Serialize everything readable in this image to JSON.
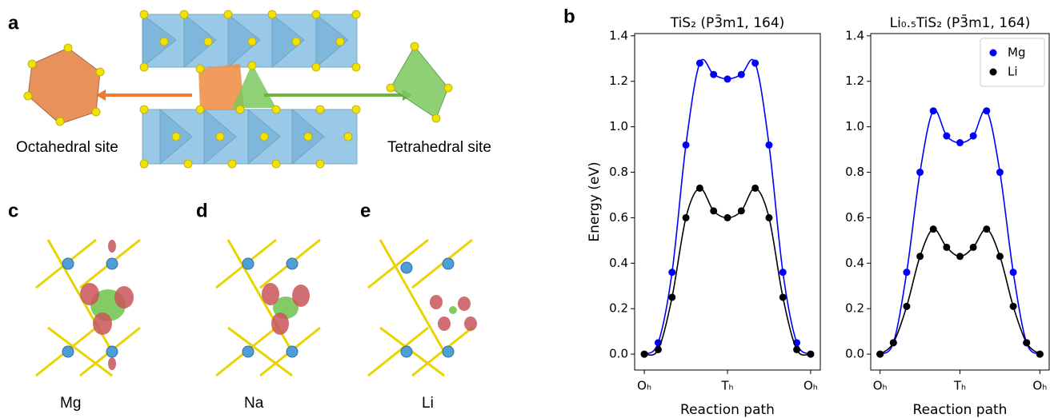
{
  "panel_labels": [
    "a",
    "b",
    "c",
    "d",
    "e"
  ],
  "illustration": {
    "octahedral_label": "Octahedral site",
    "tetrahedral_label": "Tetrahedral site",
    "ions": [
      "Mg",
      "Na",
      "Li"
    ]
  },
  "chart_data": [
    {
      "type": "line",
      "title": "TiS₂ (P3̄m1, 164)",
      "xlabel": "Reaction path",
      "ylabel": "Energy (eV)",
      "x": [
        0,
        1,
        2,
        3,
        4,
        5,
        6,
        7,
        8,
        9,
        10,
        11,
        12
      ],
      "xlim": [
        -0.7,
        12.7
      ],
      "xticks": [
        {
          "value": 0,
          "label": "Oₕ"
        },
        {
          "value": 6,
          "label": "Tₕ"
        },
        {
          "value": 12,
          "label": "Oₕ"
        }
      ],
      "ylim": [
        -0.07,
        1.41
      ],
      "yticks": [
        {
          "value": 0,
          "label": "0.0"
        },
        {
          "value": 0.2,
          "label": "0.2"
        },
        {
          "value": 0.4,
          "label": "0.4"
        },
        {
          "value": 0.6,
          "label": "0.6"
        },
        {
          "value": 0.8,
          "label": "0.8"
        },
        {
          "value": 1,
          "label": "1.0"
        },
        {
          "value": 1.2,
          "label": "1.2"
        },
        {
          "value": 1.4,
          "label": "1.4"
        }
      ],
      "markers": true,
      "smooth": true,
      "series": [
        {
          "color": "#0000ff",
          "values": [
            0,
            0.05,
            0.36,
            0.92,
            1.28,
            1.23,
            1.21,
            1.23,
            1.28,
            0.92,
            0.36,
            0.05,
            0
          ]
        },
        {
          "color": "#000000",
          "values": [
            0,
            0.02,
            0.25,
            0.6,
            0.73,
            0.63,
            0.6,
            0.63,
            0.73,
            0.6,
            0.25,
            0.02,
            0
          ]
        }
      ]
    },
    {
      "type": "line",
      "title": "Li₀.₅TiS₂ (P3̄m1, 164)",
      "xlabel": "Reaction path",
      "x": [
        0,
        1,
        2,
        3,
        4,
        5,
        6,
        7,
        8,
        9,
        10,
        11,
        12
      ],
      "xlim": [
        -0.7,
        12.7
      ],
      "xticks": [
        {
          "value": 0,
          "label": "Oₕ"
        },
        {
          "value": 6,
          "label": "Tₕ"
        },
        {
          "value": 12,
          "label": "Oₕ"
        }
      ],
      "ylim": [
        -0.07,
        1.41
      ],
      "yticks": [
        {
          "value": 0,
          "label": "0.0"
        },
        {
          "value": 0.2,
          "label": "0.2"
        },
        {
          "value": 0.4,
          "label": "0.4"
        },
        {
          "value": 0.6,
          "label": "0.6"
        },
        {
          "value": 0.8,
          "label": "0.8"
        },
        {
          "value": 1,
          "label": "1.0"
        },
        {
          "value": 1.2,
          "label": "1.2"
        },
        {
          "value": 1.4,
          "label": "1.4"
        }
      ],
      "markers": true,
      "smooth": true,
      "legend": "upper right",
      "series": [
        {
          "name": "Mg",
          "color": "#0000ff",
          "values": [
            0,
            0.05,
            0.36,
            0.8,
            1.07,
            0.96,
            0.93,
            0.96,
            1.07,
            0.8,
            0.36,
            0.05,
            0
          ]
        },
        {
          "name": "Li",
          "color": "#000000",
          "values": [
            0,
            0.05,
            0.21,
            0.43,
            0.55,
            0.47,
            0.43,
            0.47,
            0.55,
            0.43,
            0.21,
            0.05,
            0
          ]
        }
      ]
    }
  ]
}
